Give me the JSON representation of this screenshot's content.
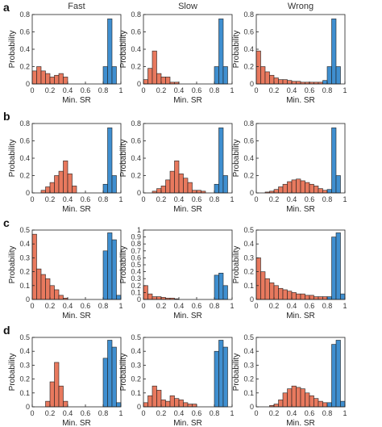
{
  "colors": {
    "red": "#E8795E",
    "blue": "#3F8FD0",
    "edge": "#222222"
  },
  "chart_data": {
    "type": "bar",
    "columns": [
      "Fast",
      "Slow",
      "Wrong"
    ],
    "rows": [
      "a",
      "b",
      "c",
      "d"
    ],
    "xlabel": "Min. SR",
    "ylabel": "Probability",
    "x_ticks": [
      "0",
      "0.2",
      "0.4",
      "0.6",
      "0.8",
      "1"
    ],
    "bin_width": 0.05,
    "bins_start": 0.0,
    "xlim": [
      0,
      1
    ],
    "panels": [
      {
        "row": "a",
        "col": "Fast",
        "ylim": [
          0,
          0.8
        ],
        "y_ticks": [
          "0",
          "0.2",
          "0.4",
          "0.6",
          "0.8"
        ],
        "red": [
          0.15,
          0.2,
          0.15,
          0.12,
          0.08,
          0.1,
          0.12,
          0.08
        ],
        "blue": {
          "start": 0.8,
          "values": [
            0.2,
            0.75,
            0.2
          ]
        }
      },
      {
        "row": "a",
        "col": "Slow",
        "ylim": [
          0,
          0.8
        ],
        "y_ticks": [
          "0",
          "0.2",
          "0.4",
          "0.6",
          "0.8"
        ],
        "red": [
          0.05,
          0.18,
          0.38,
          0.12,
          0.08,
          0.08,
          0.02,
          0.02
        ],
        "blue": {
          "start": 0.8,
          "values": [
            0.2,
            0.75,
            0.2
          ]
        }
      },
      {
        "row": "a",
        "col": "Wrong",
        "ylim": [
          0,
          0.8
        ],
        "y_ticks": [
          "0",
          "0.2",
          "0.4",
          "0.6",
          "0.8"
        ],
        "red": [
          0.38,
          0.2,
          0.14,
          0.1,
          0.07,
          0.05,
          0.05,
          0.04,
          0.03,
          0.03,
          0.02,
          0.02,
          0.02,
          0.02,
          0.02
        ],
        "blue": {
          "start": 0.75,
          "values": [
            0.04,
            0.2,
            0.75,
            0.2
          ]
        }
      },
      {
        "row": "b",
        "col": "Fast",
        "ylim": [
          0,
          0.8
        ],
        "y_ticks": [
          "0",
          "0.2",
          "0.4",
          "0.6",
          "0.8"
        ],
        "red": [
          0,
          0,
          0.03,
          0.07,
          0.12,
          0.2,
          0.25,
          0.37,
          0.22,
          0.08
        ],
        "blue": {
          "start": 0.8,
          "values": [
            0.1,
            0.75,
            0.2
          ]
        }
      },
      {
        "row": "b",
        "col": "Slow",
        "ylim": [
          0,
          0.8
        ],
        "y_ticks": [
          "0",
          "0.2",
          "0.4",
          "0.6",
          "0.8"
        ],
        "red": [
          0,
          0,
          0.02,
          0.05,
          0.08,
          0.15,
          0.25,
          0.37,
          0.22,
          0.17,
          0.12,
          0.03,
          0.03,
          0.02
        ],
        "blue": {
          "start": 0.8,
          "values": [
            0.1,
            0.75,
            0.2
          ]
        }
      },
      {
        "row": "b",
        "col": "Wrong",
        "ylim": [
          0,
          0.8
        ],
        "y_ticks": [
          "0",
          "0.2",
          "0.4",
          "0.6",
          "0.8"
        ],
        "red": [
          0,
          0,
          0.01,
          0.02,
          0.04,
          0.07,
          0.1,
          0.13,
          0.15,
          0.16,
          0.14,
          0.12,
          0.1,
          0.08,
          0.05,
          0.03
        ],
        "blue": {
          "start": 0.8,
          "values": [
            0.04,
            0.75,
            0.2
          ]
        }
      },
      {
        "row": "c",
        "col": "Fast",
        "ylim": [
          0,
          0.5
        ],
        "y_ticks": [
          "0",
          "0.1",
          "0.2",
          "0.3",
          "0.4",
          "0.5"
        ],
        "red": [
          0.47,
          0.22,
          0.18,
          0.15,
          0.1,
          0.07,
          0.03,
          0.01
        ],
        "blue": {
          "start": 0.8,
          "values": [
            0.35,
            0.48,
            0.43,
            0.03
          ]
        }
      },
      {
        "row": "c",
        "col": "Slow",
        "ylim": [
          0,
          1
        ],
        "y_ticks": [
          "0",
          "0.1",
          "0.2",
          "0.3",
          "0.4",
          "0.5",
          "0.6",
          "0.7",
          "0.8",
          "0.9",
          "1"
        ],
        "red": [
          0.2,
          0.08,
          0.04,
          0.04,
          0.03,
          0.02,
          0.02,
          0.01
        ],
        "blue": {
          "start": 0.8,
          "values": [
            0.35,
            0.38,
            0.2
          ]
        }
      },
      {
        "row": "c",
        "col": "Wrong",
        "ylim": [
          0,
          0.5
        ],
        "y_ticks": [
          "0",
          "0.1",
          "0.2",
          "0.3",
          "0.4",
          "0.5"
        ],
        "red": [
          0.3,
          0.2,
          0.15,
          0.12,
          0.1,
          0.08,
          0.07,
          0.06,
          0.05,
          0.04,
          0.04,
          0.03,
          0.03,
          0.02,
          0.02,
          0.02
        ],
        "blue": {
          "start": 0.8,
          "values": [
            0.02,
            0.45,
            0.48,
            0.04
          ]
        }
      },
      {
        "row": "d",
        "col": "Fast",
        "ylim": [
          0,
          0.5
        ],
        "y_ticks": [
          "0",
          "0.1",
          "0.2",
          "0.3",
          "0.4",
          "0.5"
        ],
        "red": [
          0,
          0,
          0,
          0.04,
          0.18,
          0.32,
          0.15,
          0.04
        ],
        "blue": {
          "start": 0.8,
          "values": [
            0.35,
            0.48,
            0.43,
            0.03
          ]
        }
      },
      {
        "row": "d",
        "col": "Slow",
        "ylim": [
          0,
          0.5
        ],
        "y_ticks": [
          "0",
          "0.1",
          "0.2",
          "0.3",
          "0.4",
          "0.5"
        ],
        "red": [
          0.03,
          0.08,
          0.15,
          0.12,
          0.05,
          0.04,
          0.08,
          0.06,
          0.05,
          0.03,
          0.02,
          0.02
        ],
        "blue": {
          "start": 0.8,
          "values": [
            0.4,
            0.48,
            0.43
          ]
        }
      },
      {
        "row": "d",
        "col": "Wrong",
        "ylim": [
          0,
          0.5
        ],
        "y_ticks": [
          "0",
          "0.1",
          "0.2",
          "0.3",
          "0.4",
          "0.5"
        ],
        "red": [
          0,
          0,
          0,
          0.01,
          0.02,
          0.05,
          0.1,
          0.13,
          0.15,
          0.14,
          0.13,
          0.1,
          0.08,
          0.06,
          0.04,
          0.03
        ],
        "blue": {
          "start": 0.8,
          "values": [
            0.03,
            0.45,
            0.48,
            0.04
          ]
        }
      }
    ]
  }
}
